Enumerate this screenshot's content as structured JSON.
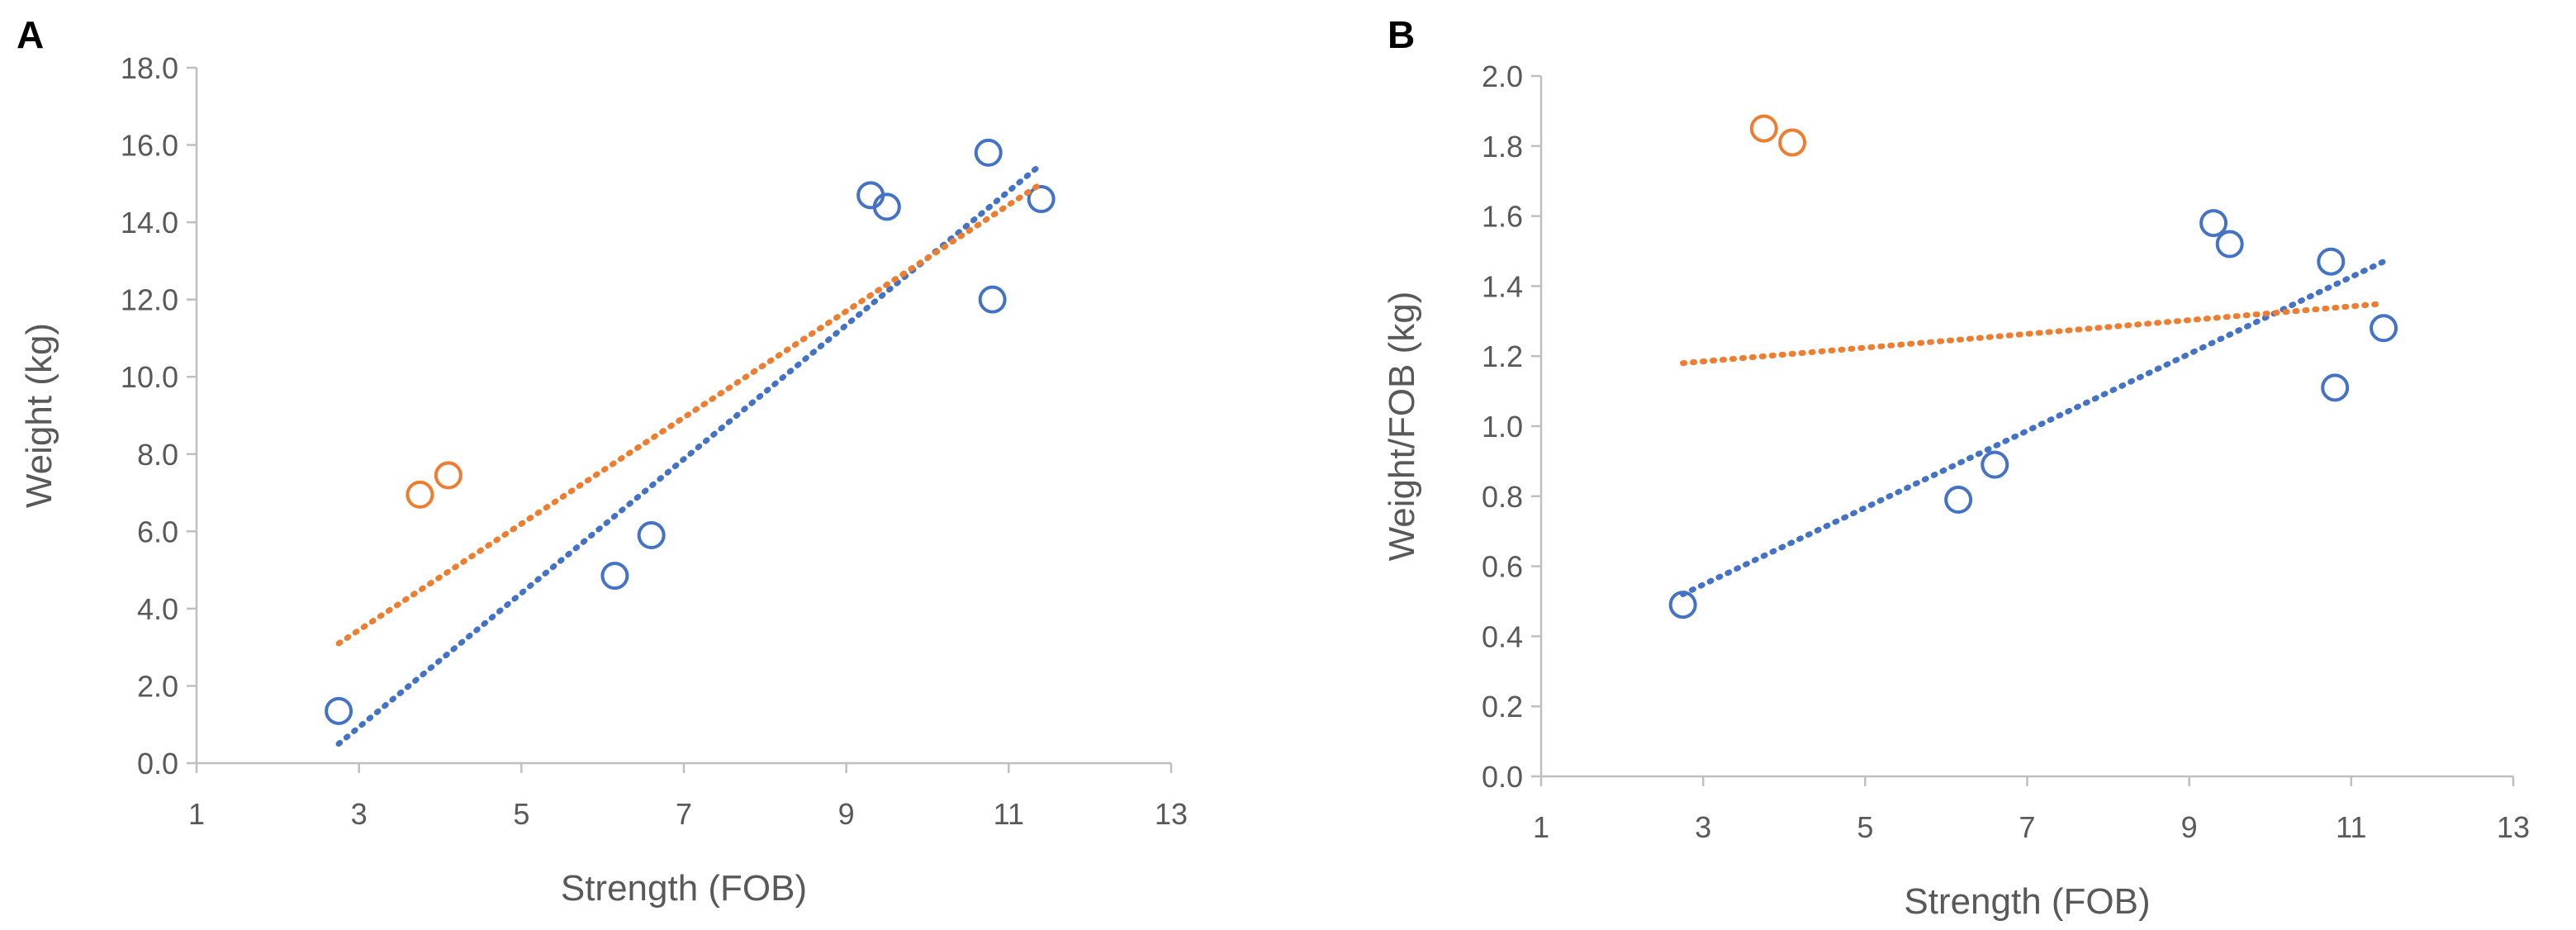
{
  "colors": {
    "blue": "#4472c4",
    "orange": "#ed7d31",
    "axis": "#bfbfbf",
    "text": "#595959"
  },
  "chart_data": [
    {
      "type": "scatter",
      "panel_label": "A",
      "title": "",
      "xlabel": "Strength (FOB)",
      "ylabel": "Weight (kg)",
      "xlim": [
        1,
        13
      ],
      "ylim": [
        0,
        18
      ],
      "x_ticks": [
        "1",
        "3",
        "5",
        "7",
        "9",
        "11",
        "13"
      ],
      "y_ticks": [
        "0.0",
        "2.0",
        "4.0",
        "6.0",
        "8.0",
        "10.0",
        "12.0",
        "14.0",
        "16.0",
        "18.0"
      ],
      "grid": false,
      "legend": "none",
      "series": [
        {
          "name": "blue",
          "color": "#4472c4",
          "points": [
            [
              2.75,
              1.35
            ],
            [
              6.15,
              4.85
            ],
            [
              6.6,
              5.9
            ],
            [
              9.3,
              14.7
            ],
            [
              9.5,
              14.4
            ],
            [
              10.75,
              15.8
            ],
            [
              10.8,
              12.0
            ],
            [
              11.4,
              14.6
            ]
          ],
          "trendline": [
            [
              2.75,
              0.5
            ],
            [
              11.4,
              15.5
            ]
          ]
        },
        {
          "name": "orange",
          "color": "#ed7d31",
          "points": [
            [
              3.75,
              6.95
            ],
            [
              4.1,
              7.45
            ]
          ],
          "trendline": [
            [
              2.75,
              3.1
            ],
            [
              11.4,
              15.0
            ]
          ]
        }
      ]
    },
    {
      "type": "scatter",
      "panel_label": "B",
      "title": "",
      "xlabel": "Strength (FOB)",
      "ylabel": "Weight/FOB (kg)",
      "xlim": [
        1,
        13
      ],
      "ylim": [
        0,
        2
      ],
      "x_ticks": [
        "1",
        "3",
        "5",
        "7",
        "9",
        "11",
        "13"
      ],
      "y_ticks": [
        "0.0",
        "0.2",
        "0.4",
        "0.6",
        "0.8",
        "1.0",
        "1.2",
        "1.4",
        "1.6",
        "1.8",
        "2.0"
      ],
      "grid": false,
      "legend": "none",
      "series": [
        {
          "name": "blue",
          "color": "#4472c4",
          "points": [
            [
              2.75,
              0.49
            ],
            [
              6.15,
              0.79
            ],
            [
              6.6,
              0.89
            ],
            [
              9.3,
              1.58
            ],
            [
              9.5,
              1.52
            ],
            [
              10.75,
              1.47
            ],
            [
              10.8,
              1.11
            ],
            [
              11.4,
              1.28
            ]
          ],
          "trendline": [
            [
              2.75,
              0.52
            ],
            [
              11.4,
              1.47
            ]
          ]
        },
        {
          "name": "orange",
          "color": "#ed7d31",
          "points": [
            [
              3.75,
              1.85
            ],
            [
              4.1,
              1.81
            ]
          ],
          "trendline": [
            [
              2.75,
              1.18
            ],
            [
              11.4,
              1.35
            ]
          ]
        }
      ]
    }
  ]
}
